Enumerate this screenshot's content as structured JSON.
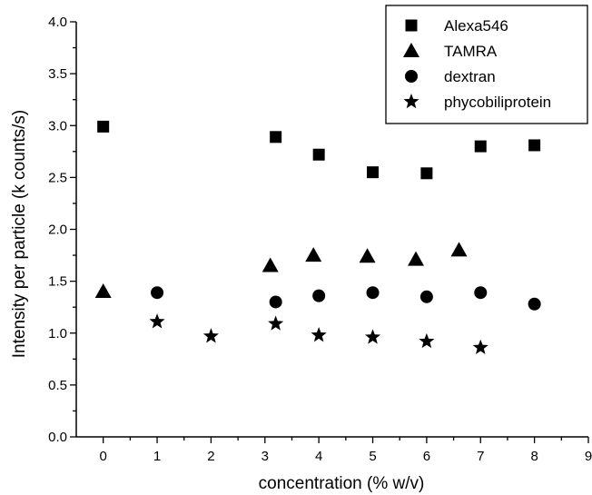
{
  "chart_data": {
    "type": "scatter",
    "xlabel": "concentration (% w/v)",
    "ylabel": "Intensity per particle (k counts/s)",
    "xlim": [
      -0.5,
      9
    ],
    "ylim": [
      0,
      4.0
    ],
    "x_ticks": [
      0,
      1,
      2,
      3,
      4,
      5,
      6,
      7,
      8,
      9
    ],
    "x_tick_labels": [
      "0",
      "1",
      "2",
      "3",
      "4",
      "5",
      "6",
      "7",
      "8",
      "9"
    ],
    "y_ticks": [
      0,
      0.5,
      1.0,
      1.5,
      2.0,
      2.5,
      3.0,
      3.5,
      4.0
    ],
    "y_tick_labels": [
      "0.0",
      "0.5",
      "1.0",
      "1.5",
      "2.0",
      "2.5",
      "3.0",
      "3.5",
      "4.0"
    ],
    "grid": false,
    "legend_position": "top-right",
    "series": [
      {
        "name": "Alexa546",
        "marker": "square",
        "points": [
          [
            0,
            2.99
          ],
          [
            3.2,
            2.89
          ],
          [
            4,
            2.72
          ],
          [
            5,
            2.55
          ],
          [
            6,
            2.54
          ],
          [
            7,
            2.8
          ],
          [
            8,
            2.81
          ]
        ]
      },
      {
        "name": "TAMRA",
        "marker": "triangle",
        "points": [
          [
            0,
            1.4
          ],
          [
            3.1,
            1.65
          ],
          [
            3.9,
            1.75
          ],
          [
            4.9,
            1.74
          ],
          [
            5.8,
            1.71
          ],
          [
            6.6,
            1.8
          ]
        ]
      },
      {
        "name": "dextran",
        "marker": "circle",
        "points": [
          [
            1,
            1.39
          ],
          [
            3.2,
            1.3
          ],
          [
            4,
            1.36
          ],
          [
            5,
            1.39
          ],
          [
            6,
            1.35
          ],
          [
            7,
            1.39
          ],
          [
            8,
            1.28
          ]
        ]
      },
      {
        "name": "phycobiliprotein",
        "marker": "star",
        "points": [
          [
            1,
            1.11
          ],
          [
            2,
            0.97
          ],
          [
            3.2,
            1.09
          ],
          [
            4,
            0.98
          ],
          [
            5,
            0.96
          ],
          [
            6,
            0.92
          ],
          [
            7,
            0.86
          ]
        ]
      }
    ]
  }
}
